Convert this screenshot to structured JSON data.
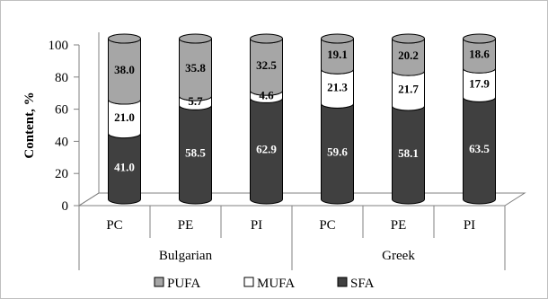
{
  "chart_data": {
    "type": "bar",
    "stacked": true,
    "three_d": true,
    "title": "",
    "xlabel": "",
    "ylabel": "Content, %",
    "ylim": [
      0,
      100
    ],
    "yticks": [
      "0",
      "20",
      "40",
      "60",
      "80",
      "100"
    ],
    "categories": [
      "PC",
      "PE",
      "PI",
      "PC",
      "PE",
      "PI"
    ],
    "groups": [
      {
        "label": "Bulgarian",
        "span": 3
      },
      {
        "label": "Greek",
        "span": 3
      }
    ],
    "series": [
      {
        "name": "SFA",
        "color": "#404040",
        "label_color": "#ffffff",
        "values": [
          41.0,
          58.5,
          62.9,
          59.6,
          58.1,
          63.5
        ],
        "labels": [
          "41.0",
          "58.5",
          "62.9",
          "59.6",
          "58.1",
          "63.5"
        ]
      },
      {
        "name": "MUFA",
        "color": "#ffffff",
        "label_color": "#000000",
        "values": [
          21.0,
          5.7,
          4.6,
          21.3,
          21.7,
          17.9
        ],
        "labels": [
          "21.0",
          "5.7",
          "4.6",
          "21.3",
          "21.7",
          "17.9"
        ]
      },
      {
        "name": "PUFA",
        "color": "#a6a6a6",
        "label_color": "#000000",
        "values": [
          38.0,
          35.8,
          32.5,
          19.1,
          20.2,
          18.6
        ],
        "labels": [
          "38.0",
          "35.8",
          "32.5",
          "19.1",
          "20.2",
          "18.6"
        ]
      }
    ],
    "legend": {
      "placement": "bottom",
      "order": [
        "PUFA",
        "MUFA",
        "SFA"
      ]
    },
    "grid": false
  }
}
